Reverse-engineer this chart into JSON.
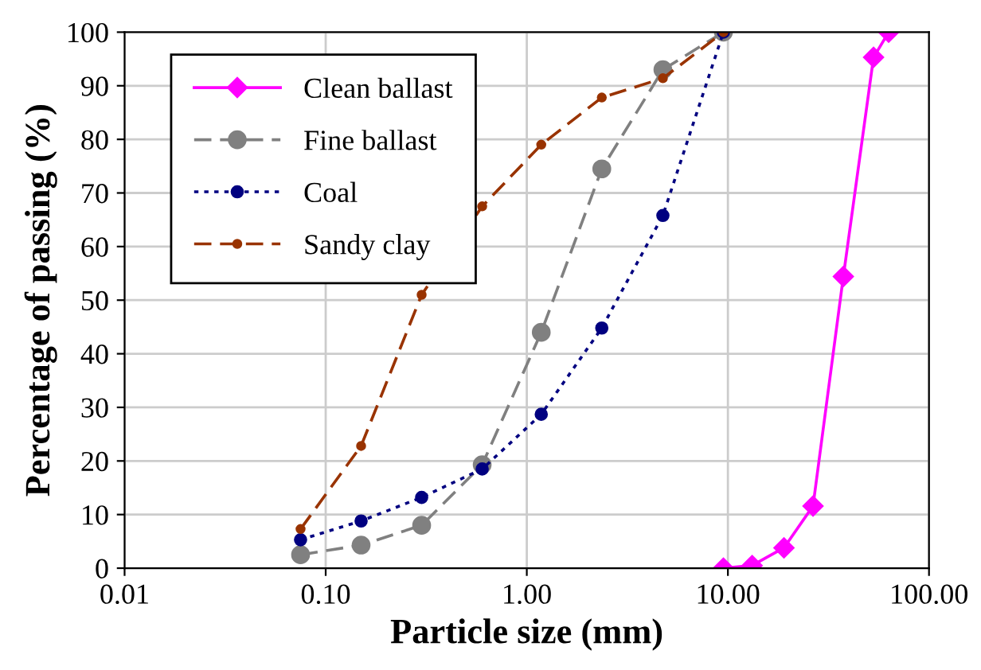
{
  "chart_data": {
    "type": "line",
    "xlabel": "Particle size (mm)",
    "ylabel": "Percentage of passing (%)",
    "log": "x",
    "grid": true,
    "legend": "top left",
    "xlim": [
      0.01,
      100
    ],
    "xticks": [
      {
        "value": 0.01,
        "label": "0.01"
      },
      {
        "value": 0.1,
        "label": "0.10"
      },
      {
        "value": 1,
        "label": "1.00"
      },
      {
        "value": 10,
        "label": "10.00"
      },
      {
        "value": 100,
        "label": "100.00"
      }
    ],
    "ylim": [
      0,
      100
    ],
    "yticks": [
      0,
      10,
      20,
      30,
      40,
      50,
      60,
      70,
      80,
      90,
      100
    ],
    "series": [
      {
        "name": "Clean ballast",
        "color": "#ff00ff",
        "marker": "diamond",
        "line_style": "solid",
        "x": [
          9.5,
          13.2,
          19,
          26.5,
          37.5,
          53,
          63
        ],
        "values": [
          0,
          0.5,
          3.8,
          11.6,
          54.4,
          95.3,
          100
        ]
      },
      {
        "name": "Fine ballast",
        "color": "#808080",
        "marker": "circle",
        "line_style": "dashed",
        "x": [
          0.075,
          0.15,
          0.3,
          0.6,
          1.18,
          2.36,
          4.75,
          9.5
        ],
        "values": [
          2.5,
          4.3,
          8,
          19.3,
          44,
          74.5,
          93,
          100
        ]
      },
      {
        "name": "Coal",
        "color": "#000080",
        "marker": "circle",
        "line_style": "dotted",
        "x": [
          0.075,
          0.15,
          0.3,
          0.6,
          1.18,
          2.36,
          4.75,
          9.5
        ],
        "values": [
          5.3,
          8.8,
          13.2,
          18.5,
          28.7,
          44.8,
          65.8,
          100
        ]
      },
      {
        "name": "Sandy clay",
        "color": "#993300",
        "marker": "circle",
        "line_style": "dashed",
        "x": [
          0.075,
          0.15,
          0.3,
          0.6,
          1.18,
          2.36,
          4.75,
          9.5
        ],
        "values": [
          7.3,
          22.8,
          51,
          67.5,
          79,
          87.8,
          91.4,
          100
        ]
      }
    ]
  }
}
